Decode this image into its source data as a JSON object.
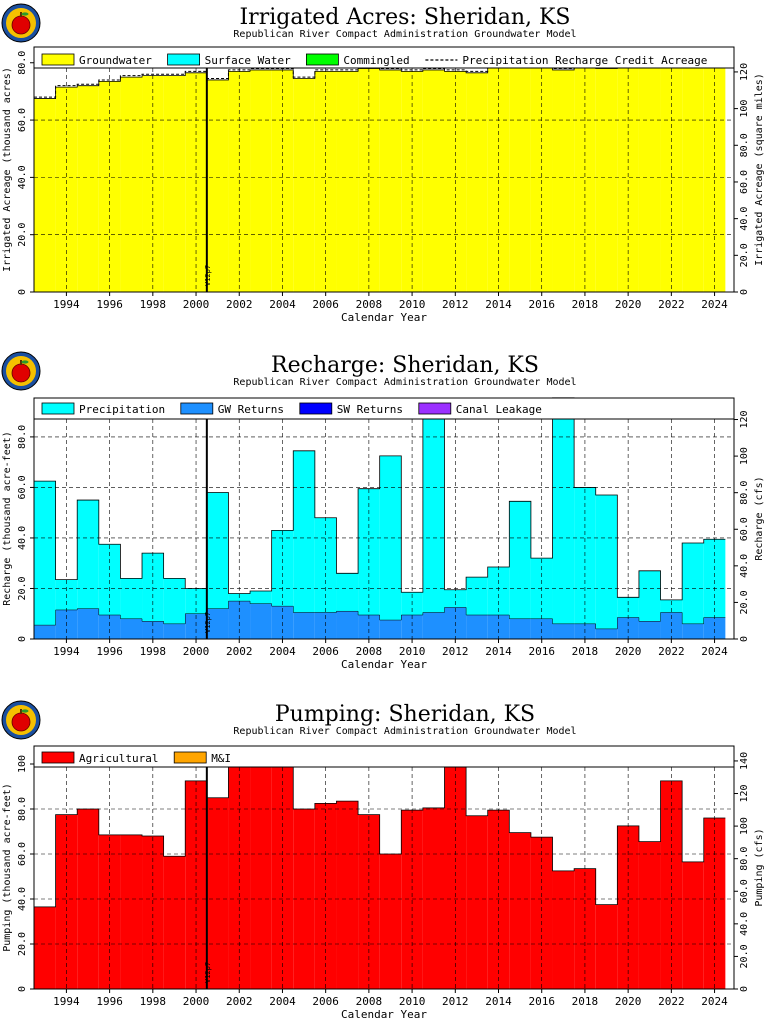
{
  "colors": {
    "groundwater": "#ffff00",
    "surface_water": "#00ffff",
    "commingled": "#00ff00",
    "precipitation": "#00ffff",
    "gw_returns": "#1e90ff",
    "sw_returns": "#0000ff",
    "canal_leakage": "#9b30ff",
    "agricultural": "#ff0000",
    "mi": "#ffa500",
    "marker": "#000000",
    "grid": "#000000"
  },
  "icons": {
    "logo": "apple-logo-icon"
  },
  "chart_data": [
    {
      "type": "bar",
      "title": "Irrigated Acres: Sheridan, KS",
      "subtitle": "Republican River Compact Administration Groundwater Model",
      "xlabel": "Calendar Year",
      "ylabel": "Irrigated Acreage (thousand acres)",
      "ylabel_right": "Irrigated Acreage (square miles)",
      "xlim": [
        1992.5,
        2024.9
      ],
      "ylim": [
        0,
        85.5
      ],
      "right_ticks": [
        {
          "value": 0,
          "label": "0"
        },
        {
          "value": 12.8,
          "label": "20.0"
        },
        {
          "value": 25.6,
          "label": "40.0"
        },
        {
          "value": 38.4,
          "label": "60.0"
        },
        {
          "value": 51.2,
          "label": "80.0"
        },
        {
          "value": 64.0,
          "label": "100"
        },
        {
          "value": 76.8,
          "label": "120"
        }
      ],
      "yticks": [
        {
          "value": 0,
          "label": "0"
        },
        {
          "value": 20,
          "label": "20.0"
        },
        {
          "value": 40,
          "label": "40.0"
        },
        {
          "value": 60,
          "label": "60.0"
        },
        {
          "value": 80,
          "label": "80.0"
        }
      ],
      "xticks": [
        "1994",
        "1996",
        "1998",
        "2000",
        "2002",
        "2004",
        "2006",
        "2008",
        "2010",
        "2012",
        "2014",
        "2016",
        "2018",
        "2020",
        "2022",
        "2024"
      ],
      "marker": {
        "x": 2000.5,
        "label": "V12p7"
      },
      "legend": [
        {
          "name": "Groundwater",
          "type": "box",
          "color_key": "groundwater"
        },
        {
          "name": "Surface Water",
          "type": "box",
          "color_key": "surface_water"
        },
        {
          "name": "Commingled",
          "type": "box",
          "color_key": "commingled"
        },
        {
          "name": "Precipitation Recharge Credit Acreage",
          "type": "dash"
        }
      ],
      "years": [
        1993,
        1994,
        1995,
        1996,
        1997,
        1998,
        1999,
        2000,
        2001,
        2002,
        2003,
        2004,
        2005,
        2006,
        2007,
        2008,
        2009,
        2010,
        2011,
        2012,
        2013,
        2014,
        2015,
        2016,
        2017,
        2018,
        2019,
        2020,
        2021,
        2022,
        2023,
        2024
      ],
      "series": [
        {
          "name": "Groundwater",
          "color_key": "groundwater",
          "values": [
            67.5,
            71.5,
            72.0,
            73.5,
            75.0,
            75.5,
            75.5,
            76.5,
            74.0,
            77.0,
            77.5,
            77.5,
            74.5,
            77.0,
            77.0,
            78.0,
            77.5,
            77.0,
            77.5,
            77.0,
            76.5,
            79.0,
            79.0,
            78.5,
            77.5,
            79.5,
            78.0,
            83.0,
            83.5,
            83.5,
            81.5,
            82.0
          ]
        },
        {
          "name": "Surface Water",
          "color_key": "surface_water",
          "values": [
            0,
            0,
            0,
            0,
            0,
            0,
            0,
            0,
            0,
            0,
            0,
            0,
            0,
            0,
            0,
            0,
            0,
            0,
            0,
            0,
            0,
            0,
            0,
            0,
            0,
            0,
            0,
            0,
            0,
            0,
            0,
            0
          ]
        },
        {
          "name": "Commingled",
          "color_key": "commingled",
          "values": [
            0,
            0,
            0,
            0,
            0,
            0,
            0,
            0,
            0,
            0,
            0,
            0,
            0,
            0,
            0,
            0,
            0,
            0,
            0,
            0,
            0,
            0,
            0,
            0,
            0,
            0,
            0,
            0,
            0,
            0,
            0,
            0
          ]
        }
      ],
      "dashed_series": {
        "name": "Precipitation Recharge Credit Acreage",
        "values": [
          68.0,
          72.0,
          72.5,
          74.0,
          75.5,
          76.0,
          76.0,
          77.0,
          74.5,
          77.5,
          78.0,
          78.0,
          75.0,
          77.5,
          77.5,
          78.5,
          78.0,
          77.5,
          78.0,
          77.5,
          77.0,
          79.5,
          79.5,
          79.0,
          78.0,
          80.0,
          78.5,
          83.5,
          84.0,
          84.0,
          82.0,
          82.5
        ]
      }
    },
    {
      "type": "bar",
      "title": "Recharge: Sheridan, KS",
      "subtitle": "Republican River Compact Administration Groundwater Model",
      "xlabel": "Calendar Year",
      "ylabel": "Recharge (thousand acre-feet)",
      "ylabel_right": "Recharge (cfs)",
      "xlim": [
        1992.5,
        2024.9
      ],
      "ylim": [
        0,
        95.4
      ],
      "right_ticks": [
        {
          "value": 0,
          "label": "0"
        },
        {
          "value": 14.48,
          "label": "20.0"
        },
        {
          "value": 28.96,
          "label": "40.0"
        },
        {
          "value": 43.44,
          "label": "60.0"
        },
        {
          "value": 57.92,
          "label": "80.0"
        },
        {
          "value": 72.4,
          "label": "100"
        },
        {
          "value": 86.88,
          "label": "120"
        }
      ],
      "yticks": [
        {
          "value": 0,
          "label": "0"
        },
        {
          "value": 20,
          "label": "20.0"
        },
        {
          "value": 40,
          "label": "40.0"
        },
        {
          "value": 60,
          "label": "60.0"
        },
        {
          "value": 80,
          "label": "80.0"
        }
      ],
      "xticks": [
        "1994",
        "1996",
        "1998",
        "2000",
        "2002",
        "2004",
        "2006",
        "2008",
        "2010",
        "2012",
        "2014",
        "2016",
        "2018",
        "2020",
        "2022",
        "2024"
      ],
      "marker": {
        "x": 2000.5,
        "label": "V12p7"
      },
      "legend": [
        {
          "name": "Precipitation",
          "type": "box",
          "color_key": "precipitation"
        },
        {
          "name": "GW Returns",
          "type": "box",
          "color_key": "gw_returns"
        },
        {
          "name": "SW Returns",
          "type": "box",
          "color_key": "sw_returns"
        },
        {
          "name": "Canal Leakage",
          "type": "box",
          "color_key": "canal_leakage"
        }
      ],
      "years": [
        1993,
        1994,
        1995,
        1996,
        1997,
        1998,
        1999,
        2000,
        2001,
        2002,
        2003,
        2004,
        2005,
        2006,
        2007,
        2008,
        2009,
        2010,
        2011,
        2012,
        2013,
        2014,
        2015,
        2016,
        2017,
        2018,
        2019,
        2020,
        2021,
        2022,
        2023,
        2024
      ],
      "series": [
        {
          "name": "GW Returns",
          "color_key": "gw_returns",
          "values": [
            5.5,
            11.5,
            12.0,
            9.5,
            8.0,
            7.0,
            6.0,
            10.0,
            12.0,
            15.0,
            14.0,
            13.0,
            10.5,
            10.5,
            11.0,
            9.5,
            7.5,
            9.5,
            10.5,
            12.5,
            9.5,
            9.5,
            8.0,
            8.0,
            6.0,
            6.0,
            4.0,
            8.5,
            7.0,
            10.5,
            6.0,
            8.5
          ]
        },
        {
          "name": "Precipitation",
          "color_key": "precipitation",
          "values": [
            57.0,
            12.0,
            43.0,
            28.0,
            16.0,
            27.0,
            18.0,
            10.0,
            46.0,
            3.0,
            5.0,
            30.0,
            64.0,
            37.5,
            15.0,
            50.0,
            65.0,
            9.0,
            83.0,
            7.0,
            15.0,
            19.0,
            46.5,
            24.0,
            89.5,
            54.0,
            53.0,
            8.0,
            20.0,
            5.0,
            32.0,
            31.0
          ]
        },
        {
          "name": "SW Returns",
          "color_key": "sw_returns",
          "values": [
            0,
            0,
            0,
            0,
            0,
            0,
            0,
            0,
            0,
            0,
            0,
            0,
            0,
            0,
            0,
            0,
            0,
            0,
            0,
            0,
            0,
            0,
            0,
            0,
            0,
            0,
            0,
            0,
            0,
            0,
            0,
            0
          ]
        },
        {
          "name": "Canal Leakage",
          "color_key": "canal_leakage",
          "values": [
            0,
            0,
            0,
            0,
            0,
            0,
            0,
            0,
            0,
            0,
            0,
            0,
            0,
            0,
            0,
            0,
            0,
            0,
            0,
            0,
            0,
            0,
            0,
            0,
            0,
            0,
            0,
            0,
            0,
            0,
            0,
            0
          ]
        }
      ]
    },
    {
      "type": "bar",
      "title": "Pumping: Sheridan, KS",
      "subtitle": "Republican River Compact Administration Groundwater Model",
      "xlabel": "Calendar Year",
      "ylabel": "Pumping (thousand acre-feet)",
      "ylabel_right": "Pumping (cfs)",
      "xlim": [
        1992.5,
        2024.9
      ],
      "ylim": [
        0,
        108
      ],
      "right_ticks": [
        {
          "value": 0,
          "label": "0"
        },
        {
          "value": 14.48,
          "label": "20.0"
        },
        {
          "value": 28.96,
          "label": "40.0"
        },
        {
          "value": 43.44,
          "label": "60.0"
        },
        {
          "value": 57.92,
          "label": "80.0"
        },
        {
          "value": 72.4,
          "label": "100"
        },
        {
          "value": 86.88,
          "label": "120"
        },
        {
          "value": 101.36,
          "label": "140"
        }
      ],
      "yticks": [
        {
          "value": 0,
          "label": "0"
        },
        {
          "value": 20,
          "label": "20.0"
        },
        {
          "value": 40,
          "label": "40.0"
        },
        {
          "value": 60,
          "label": "60.0"
        },
        {
          "value": 80,
          "label": "80.0"
        },
        {
          "value": 100,
          "label": "100"
        }
      ],
      "xticks": [
        "1994",
        "1996",
        "1998",
        "2000",
        "2002",
        "2004",
        "2006",
        "2008",
        "2010",
        "2012",
        "2014",
        "2016",
        "2018",
        "2020",
        "2022",
        "2024"
      ],
      "marker": {
        "x": 2000.5,
        "label": "V12p7"
      },
      "legend": [
        {
          "name": "Agricultural",
          "type": "box",
          "color_key": "agricultural"
        },
        {
          "name": "M&I",
          "type": "box",
          "color_key": "mi"
        }
      ],
      "years": [
        1993,
        1994,
        1995,
        1996,
        1997,
        1998,
        1999,
        2000,
        2001,
        2002,
        2003,
        2004,
        2005,
        2006,
        2007,
        2008,
        2009,
        2010,
        2011,
        2012,
        2013,
        2014,
        2015,
        2016,
        2017,
        2018,
        2019,
        2020,
        2021,
        2022,
        2023,
        2024
      ],
      "series": [
        {
          "name": "Agricultural",
          "color_key": "agricultural",
          "values": [
            36.5,
            77.5,
            80.0,
            68.5,
            68.5,
            68.0,
            59.0,
            92.5,
            85.0,
            107.5,
            101.5,
            99.5,
            80.0,
            82.5,
            83.5,
            77.5,
            60.0,
            79.5,
            80.5,
            101.5,
            77.0,
            79.5,
            69.5,
            67.5,
            52.5,
            53.5,
            37.5,
            72.5,
            65.5,
            92.5,
            56.5,
            76.0
          ]
        },
        {
          "name": "M&I",
          "color_key": "mi",
          "values": [
            0,
            0,
            0,
            0,
            0,
            0,
            0,
            0,
            0,
            0,
            0,
            0,
            0,
            0,
            0,
            0,
            0,
            0,
            0,
            0,
            0,
            0,
            0,
            0,
            0,
            0,
            0,
            0,
            0,
            0,
            0,
            0
          ]
        }
      ]
    }
  ]
}
